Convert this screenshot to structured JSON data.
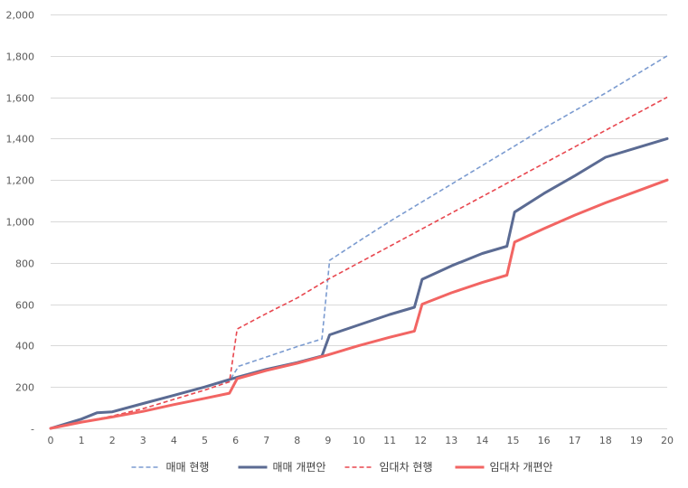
{
  "chart_data": {
    "type": "line",
    "title": "",
    "xlabel": "",
    "ylabel": "",
    "xlim": [
      0,
      20
    ],
    "ylim": [
      0,
      2000
    ],
    "grid": true,
    "legend_position": "bottom",
    "x_ticks": [
      "0",
      "1",
      "2",
      "3",
      "4",
      "5",
      "6",
      "7",
      "8",
      "9",
      "10",
      "11",
      "12",
      "13",
      "14",
      "15",
      "16",
      "17",
      "18",
      "19",
      "20"
    ],
    "y_ticks": [
      "-",
      "200",
      "400",
      "600",
      "800",
      "1,000",
      "1,200",
      "1,400",
      "1,600",
      "1,800",
      "2,000"
    ],
    "y_tick_values": [
      0,
      200,
      400,
      600,
      800,
      1000,
      1200,
      1400,
      1600,
      1800,
      2000
    ],
    "series": [
      {
        "name": "매매 현행",
        "color": "#7b9bd0",
        "style": "dashed",
        "points": [
          [
            0,
            0
          ],
          [
            1,
            45
          ],
          [
            1.5,
            75
          ],
          [
            2,
            80
          ],
          [
            3,
            120
          ],
          [
            4,
            160
          ],
          [
            5,
            200
          ],
          [
            5.8,
            230
          ],
          [
            6.1,
            300
          ],
          [
            7,
            345
          ],
          [
            8,
            395
          ],
          [
            8.8,
            432
          ],
          [
            9.05,
            812
          ],
          [
            10,
            905
          ],
          [
            11,
            1000
          ],
          [
            12,
            1090
          ],
          [
            13,
            1180
          ],
          [
            14,
            1270
          ],
          [
            15,
            1360
          ],
          [
            16,
            1450
          ],
          [
            17,
            1535
          ],
          [
            18,
            1620
          ],
          [
            19,
            1710
          ],
          [
            20,
            1800
          ]
        ]
      },
      {
        "name": "매매 개편안",
        "color": "#5b6b93",
        "style": "solid",
        "points": [
          [
            0,
            0
          ],
          [
            1,
            45
          ],
          [
            1.5,
            75
          ],
          [
            2,
            80
          ],
          [
            3,
            120
          ],
          [
            4,
            160
          ],
          [
            5,
            200
          ],
          [
            6,
            245
          ],
          [
            7,
            285
          ],
          [
            8,
            318
          ],
          [
            8.8,
            350
          ],
          [
            9.05,
            452
          ],
          [
            10,
            500
          ],
          [
            11,
            550
          ],
          [
            11.8,
            585
          ],
          [
            12.05,
            720
          ],
          [
            13,
            785
          ],
          [
            14,
            845
          ],
          [
            14.8,
            880
          ],
          [
            15.05,
            1045
          ],
          [
            16,
            1135
          ],
          [
            17,
            1220
          ],
          [
            18,
            1310
          ],
          [
            19,
            1355
          ],
          [
            20,
            1400
          ]
        ]
      },
      {
        "name": "임대차 현행",
        "color": "#e8474f",
        "style": "dashed",
        "points": [
          [
            0,
            0
          ],
          [
            1,
            30
          ],
          [
            2,
            60
          ],
          [
            3,
            95
          ],
          [
            4,
            140
          ],
          [
            5,
            185
          ],
          [
            5.8,
            225
          ],
          [
            6.05,
            480
          ],
          [
            7,
            555
          ],
          [
            8,
            630
          ],
          [
            9,
            720
          ],
          [
            10,
            800
          ],
          [
            11,
            880
          ],
          [
            12,
            960
          ],
          [
            13,
            1040
          ],
          [
            14,
            1120
          ],
          [
            15,
            1200
          ],
          [
            16,
            1280
          ],
          [
            17,
            1360
          ],
          [
            18,
            1440
          ],
          [
            19,
            1520
          ],
          [
            20,
            1600
          ]
        ]
      },
      {
        "name": "임대차 개편안",
        "color": "#f26563",
        "style": "solid",
        "points": [
          [
            0,
            0
          ],
          [
            1,
            30
          ],
          [
            2,
            55
          ],
          [
            3,
            82
          ],
          [
            4,
            115
          ],
          [
            5,
            145
          ],
          [
            5.8,
            170
          ],
          [
            6.05,
            240
          ],
          [
            7,
            280
          ],
          [
            8,
            315
          ],
          [
            9,
            355
          ],
          [
            10,
            400
          ],
          [
            11,
            440
          ],
          [
            11.8,
            470
          ],
          [
            12.05,
            600
          ],
          [
            13,
            655
          ],
          [
            14,
            705
          ],
          [
            14.8,
            740
          ],
          [
            15.05,
            900
          ],
          [
            16,
            965
          ],
          [
            17,
            1030
          ],
          [
            18,
            1090
          ],
          [
            19,
            1145
          ],
          [
            20,
            1200
          ]
        ]
      }
    ]
  }
}
